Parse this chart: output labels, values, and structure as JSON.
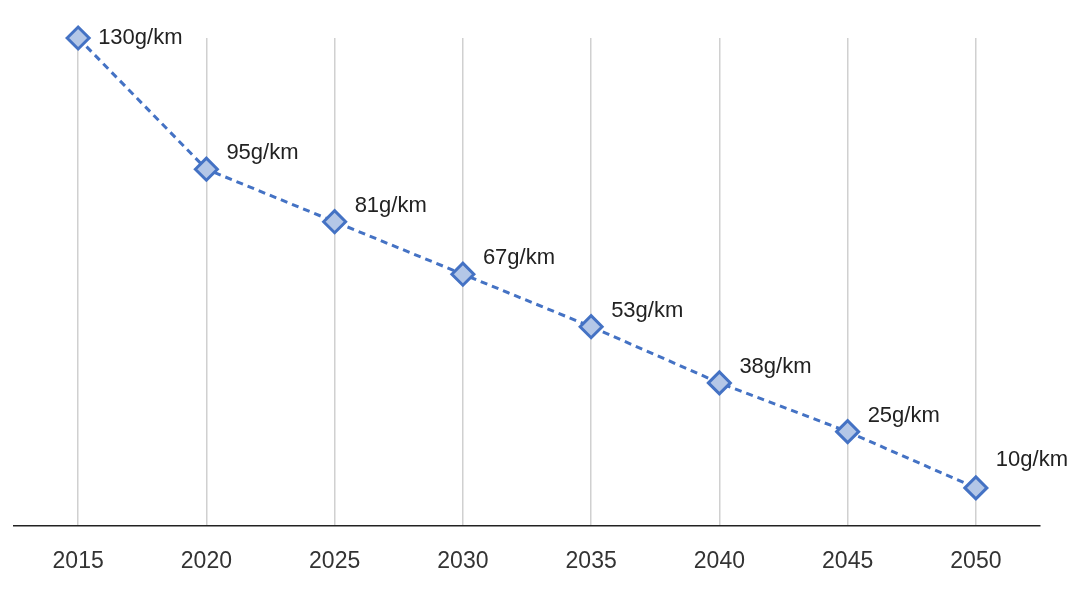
{
  "chart_data": {
    "type": "line",
    "categories": [
      "2015",
      "2020",
      "2025",
      "2030",
      "2035",
      "2040",
      "2045",
      "2050"
    ],
    "series": [
      {
        "color": "#4472c4",
        "values": [
          130,
          95,
          81,
          67,
          53,
          38,
          25,
          10
        ],
        "value_labels": [
          "130g/km",
          "95g/km",
          "81g/km",
          "67g/km",
          "53g/km",
          "38g/km",
          "25g/km",
          "10g/km"
        ]
      }
    ],
    "ylim": [
      0,
      130
    ],
    "tick_labels": "x",
    "grid": "x",
    "legend": false,
    "marker": "diamond",
    "line_style": "dashed"
  }
}
